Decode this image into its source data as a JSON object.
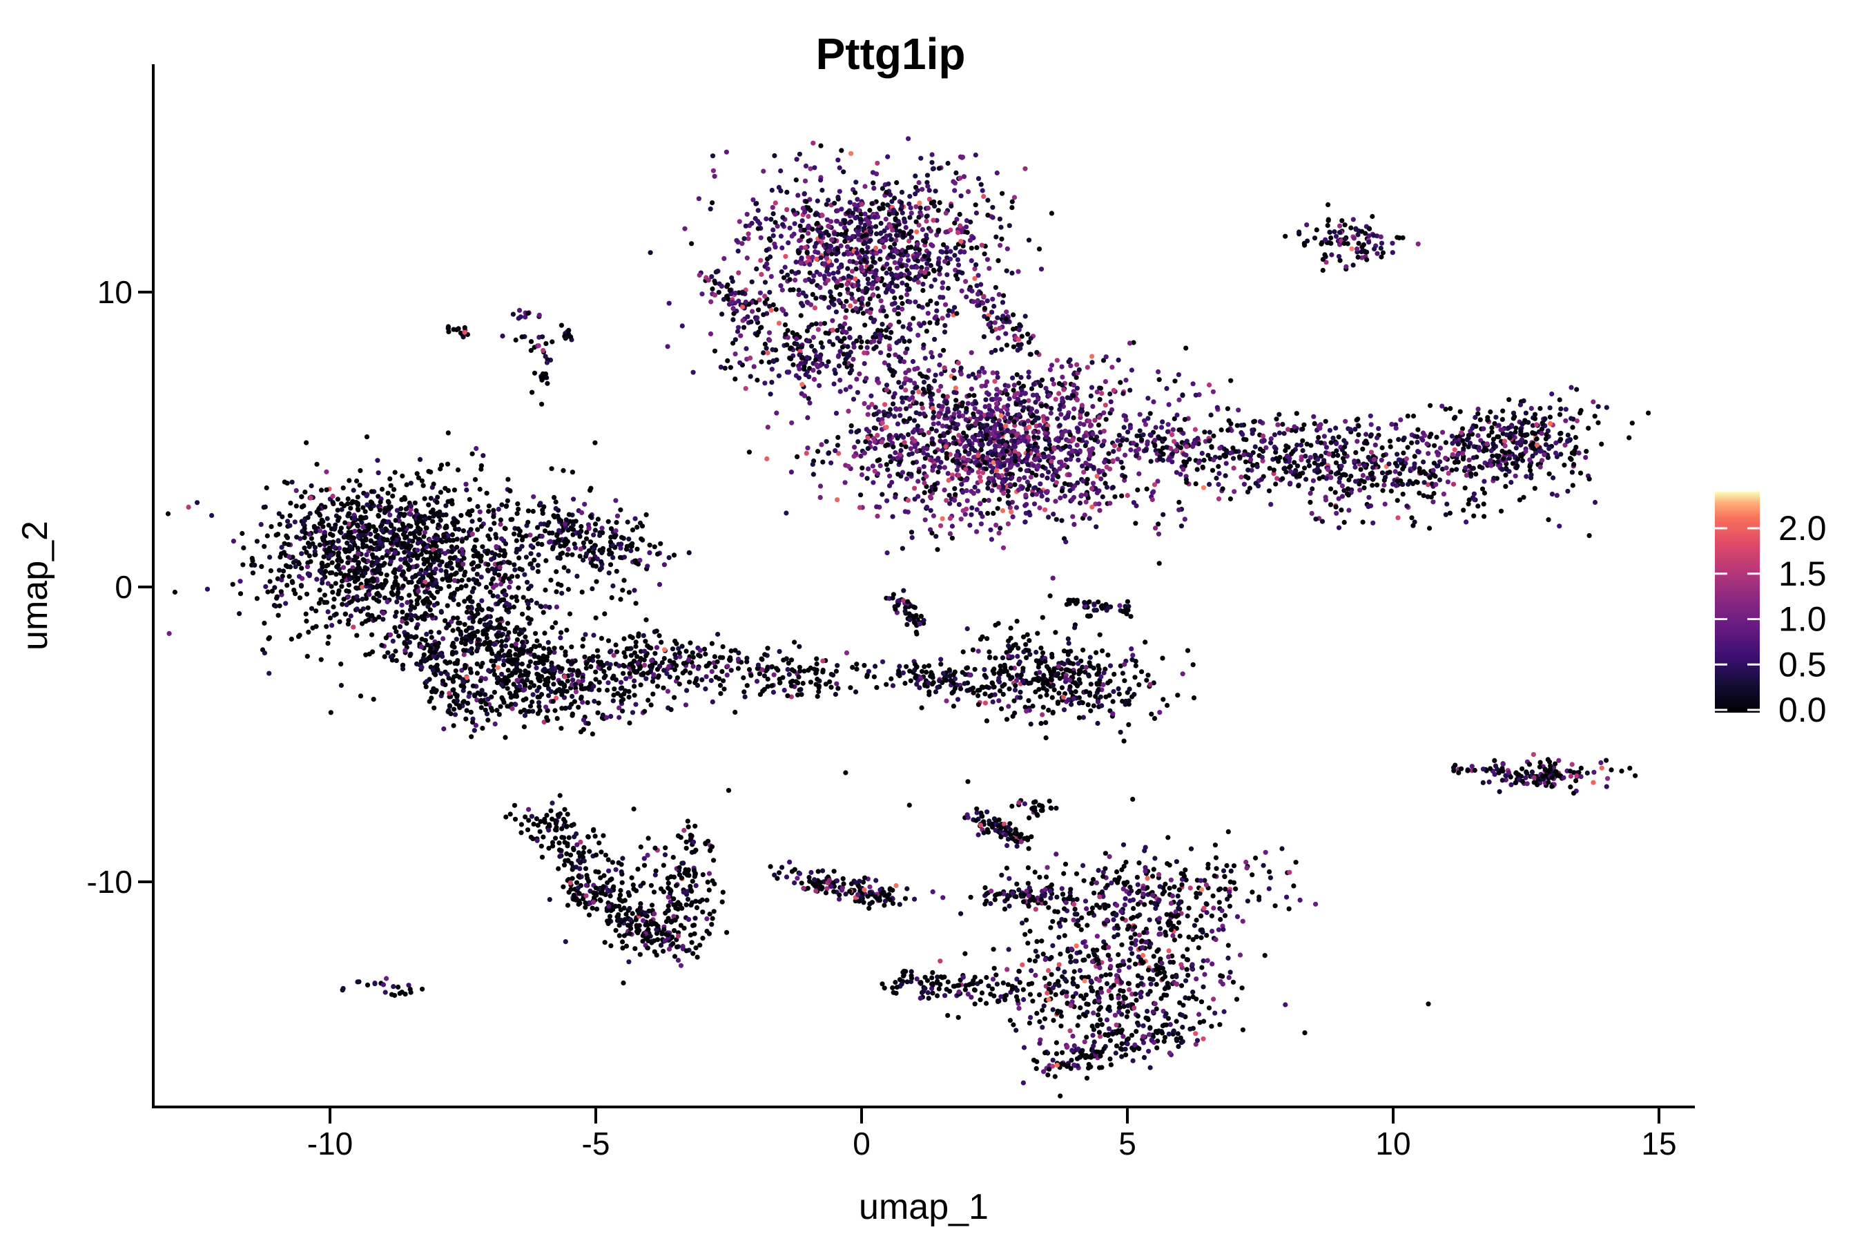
{
  "title": "Pttg1ip",
  "chart_data": {
    "type": "scatter",
    "title": "Pttg1ip",
    "xlabel": "umap_1",
    "ylabel": "umap_2",
    "xlim": [
      -13.3,
      15.7
    ],
    "ylim": [
      -17.7,
      17.7
    ],
    "x_ticks": [
      -10,
      -5,
      0,
      5,
      10,
      15
    ],
    "x_tick_labels": [
      "-10",
      "-5",
      "0",
      "5",
      "10",
      "15"
    ],
    "y_ticks": [
      -10,
      0,
      10
    ],
    "y_tick_labels": [
      "-10",
      "0",
      "10"
    ],
    "grid": false,
    "point_radius_px": 3.6,
    "background": "#ffffff",
    "axis_color": "#000000",
    "legend": {
      "position": "right",
      "orientation": "vertical",
      "ticks": [
        0.0,
        0.5,
        1.0,
        1.5,
        2.0
      ],
      "tick_labels": [
        "0.0",
        "0.5",
        "1.0",
        "1.5",
        "2.0"
      ],
      "vmax": 2.4,
      "tick_color": "#ffffff"
    },
    "colormap": "magma",
    "colormap_stops": [
      [
        0.0,
        "#000004"
      ],
      [
        0.13,
        "#140e36"
      ],
      [
        0.25,
        "#3b0f70"
      ],
      [
        0.38,
        "#641a80"
      ],
      [
        0.52,
        "#8c2981"
      ],
      [
        0.64,
        "#b73779"
      ],
      [
        0.76,
        "#de4968"
      ],
      [
        0.88,
        "#f7705c"
      ],
      [
        0.95,
        "#feb078"
      ],
      [
        1.0,
        "#fcfdbf"
      ]
    ],
    "expression_bins": [
      [
        0.0,
        0.05
      ],
      [
        0.15,
        0.55
      ],
      [
        0.55,
        1.05
      ],
      [
        1.05,
        1.6
      ],
      [
        1.6,
        2.2
      ]
    ],
    "clusters": [
      {
        "name": "top-center-main",
        "kind": "blob",
        "cx": 0.25,
        "cy": 11.5,
        "sx": 1.25,
        "sy": 1.35,
        "rot": -20,
        "n": 1000,
        "profile": [
          0.2,
          0.3,
          0.37,
          0.1,
          0.03
        ]
      },
      {
        "name": "top-center-lower",
        "kind": "blob",
        "cx": -0.7,
        "cy": 8.1,
        "sx": 1.05,
        "sy": 0.6,
        "rot": 15,
        "n": 240,
        "profile": [
          0.28,
          0.3,
          0.32,
          0.08,
          0.02
        ]
      },
      {
        "name": "top-center-west-hook",
        "kind": "streak",
        "x1": -2.75,
        "y1": 10.6,
        "x2": -2.15,
        "y2": 9.2,
        "jitter": 0.22,
        "n": 70,
        "profile": [
          0.3,
          0.3,
          0.3,
          0.08,
          0.02
        ]
      },
      {
        "name": "top-center-se-streak",
        "kind": "streak",
        "x1": 2.15,
        "y1": 10.0,
        "x2": 2.95,
        "y2": 8.3,
        "jitter": 0.16,
        "n": 60,
        "profile": [
          0.25,
          0.3,
          0.33,
          0.09,
          0.03
        ]
      },
      {
        "name": "top-right-small",
        "kind": "blob",
        "cx": 9.15,
        "cy": 11.75,
        "sx": 0.48,
        "sy": 0.4,
        "rot": -25,
        "n": 100,
        "profile": [
          0.42,
          0.28,
          0.22,
          0.06,
          0.02
        ]
      },
      {
        "name": "right-center-main",
        "kind": "blob",
        "cx": 2.55,
        "cy": 4.9,
        "sx": 1.55,
        "sy": 1.35,
        "rot": -18,
        "n": 1500,
        "profile": [
          0.16,
          0.26,
          0.4,
          0.14,
          0.04
        ]
      },
      {
        "name": "right-center-neck",
        "kind": "streak",
        "x1": 5.2,
        "y1": 5.2,
        "x2": 6.6,
        "y2": 4.3,
        "jitter": 0.4,
        "n": 90,
        "profile": [
          0.35,
          0.3,
          0.27,
          0.06,
          0.02
        ]
      },
      {
        "name": "right-band",
        "kind": "blob",
        "cx": 9.4,
        "cy": 4.2,
        "sx": 1.85,
        "sy": 0.85,
        "rot": -6,
        "n": 600,
        "profile": [
          0.45,
          0.27,
          0.22,
          0.05,
          0.01
        ]
      },
      {
        "name": "right-band-east",
        "kind": "blob",
        "cx": 12.35,
        "cy": 4.9,
        "sx": 0.8,
        "sy": 0.6,
        "rot": 25,
        "n": 280,
        "profile": [
          0.4,
          0.26,
          0.25,
          0.07,
          0.02
        ]
      },
      {
        "name": "left-main",
        "kind": "blob",
        "cx": -8.2,
        "cy": 0.7,
        "sx": 1.55,
        "sy": 1.5,
        "rot": 0,
        "n": 1050,
        "profile": [
          0.68,
          0.21,
          0.09,
          0.015,
          0.005
        ]
      },
      {
        "name": "left-upper-west",
        "kind": "blob",
        "cx": -9.4,
        "cy": 1.5,
        "sx": 0.95,
        "sy": 1.05,
        "rot": 0,
        "n": 420,
        "profile": [
          0.68,
          0.21,
          0.09,
          0.015,
          0.005
        ]
      },
      {
        "name": "left-east-finger",
        "kind": "streak",
        "x1": -6.1,
        "y1": 2.1,
        "x2": -4.3,
        "y2": 1.2,
        "jitter": 0.45,
        "n": 170,
        "profile": [
          0.68,
          0.21,
          0.09,
          0.015,
          0.005
        ]
      },
      {
        "name": "left-tail",
        "kind": "streak",
        "x1": -7.4,
        "y1": -1.0,
        "x2": -5.5,
        "y2": -3.6,
        "jitter": 0.5,
        "n": 280,
        "profile": [
          0.66,
          0.22,
          0.1,
          0.015,
          0.005
        ]
      },
      {
        "name": "left-bottom-edge",
        "kind": "streak",
        "x1": -8.7,
        "y1": -1.6,
        "x2": -7.0,
        "y2": -4.4,
        "jitter": 0.35,
        "n": 170,
        "profile": [
          0.66,
          0.22,
          0.1,
          0.015,
          0.005
        ]
      },
      {
        "name": "left-lower-blob",
        "kind": "blob",
        "cx": -5.5,
        "cy": -3.4,
        "sx": 0.95,
        "sy": 0.75,
        "rot": 0,
        "n": 230,
        "profile": [
          0.66,
          0.22,
          0.1,
          0.015,
          0.005
        ]
      },
      {
        "name": "left-stream-east",
        "kind": "streak",
        "x1": -4.7,
        "y1": -2.3,
        "x2": -0.4,
        "y2": -3.1,
        "jitter": 0.45,
        "n": 280,
        "profile": [
          0.7,
          0.19,
          0.09,
          0.015,
          0.005
        ]
      },
      {
        "name": "mid-vertical-streak",
        "kind": "streak",
        "x1": 0.6,
        "y1": -0.25,
        "x2": 1.05,
        "y2": -1.3,
        "jitter": 0.12,
        "n": 50,
        "profile": [
          0.55,
          0.25,
          0.15,
          0.04,
          0.01
        ]
      },
      {
        "name": "mid-horizontal-streak",
        "kind": "streak",
        "x1": 3.85,
        "y1": -0.5,
        "x2": 5.05,
        "y2": -0.8,
        "jitter": 0.1,
        "n": 45,
        "profile": [
          0.7,
          0.18,
          0.1,
          0.02,
          0.0
        ]
      },
      {
        "name": "center-bottom",
        "kind": "blob",
        "cx": 3.6,
        "cy": -3.1,
        "sx": 1.0,
        "sy": 0.68,
        "rot": -12,
        "n": 380,
        "profile": [
          0.6,
          0.23,
          0.13,
          0.03,
          0.01
        ]
      },
      {
        "name": "center-bottom-arm",
        "kind": "streak",
        "x1": 0.5,
        "y1": -2.9,
        "x2": 2.4,
        "y2": -3.4,
        "jitter": 0.28,
        "n": 90,
        "profile": [
          0.6,
          0.23,
          0.13,
          0.03,
          0.01
        ]
      },
      {
        "name": "crescent-upper",
        "kind": "streak",
        "x1": -6.0,
        "y1": -7.5,
        "x2": -5.1,
        "y2": -10.4,
        "jitter": 0.3,
        "n": 140,
        "profile": [
          0.7,
          0.16,
          0.1,
          0.03,
          0.01
        ]
      },
      {
        "name": "crescent-lower",
        "kind": "streak",
        "x1": -5.1,
        "y1": -10.4,
        "x2": -3.4,
        "y2": -12.3,
        "jitter": 0.33,
        "n": 170,
        "profile": [
          0.7,
          0.16,
          0.1,
          0.03,
          0.01
        ]
      },
      {
        "name": "crescent-east-wing",
        "kind": "streak",
        "x1": -3.1,
        "y1": -8.5,
        "x2": -3.6,
        "y2": -12.1,
        "jitter": 0.3,
        "n": 130,
        "profile": [
          0.7,
          0.16,
          0.1,
          0.03,
          0.01
        ]
      },
      {
        "name": "crescent-inner",
        "kind": "blob",
        "cx": -4.4,
        "cy": -10.3,
        "sx": 0.75,
        "sy": 0.95,
        "rot": 0,
        "n": 80,
        "profile": [
          0.72,
          0.15,
          0.09,
          0.03,
          0.01
        ]
      },
      {
        "name": "bottom-strip",
        "kind": "streak",
        "x1": -1.45,
        "y1": -9.8,
        "x2": 0.6,
        "y2": -10.5,
        "jitter": 0.2,
        "n": 140,
        "profile": [
          0.62,
          0.2,
          0.13,
          0.04,
          0.01
        ]
      },
      {
        "name": "bottomright-top-streak",
        "kind": "streak",
        "x1": 2.1,
        "y1": -7.7,
        "x2": 3.1,
        "y2": -8.6,
        "jitter": 0.15,
        "n": 80,
        "profile": [
          0.6,
          0.18,
          0.15,
          0.05,
          0.02
        ]
      },
      {
        "name": "bottomright-clump",
        "kind": "blob",
        "cx": 3.25,
        "cy": -7.5,
        "sx": 0.2,
        "sy": 0.15,
        "rot": 0,
        "n": 25,
        "profile": [
          0.7,
          0.15,
          0.1,
          0.05,
          0.0
        ]
      },
      {
        "name": "bottomright-band",
        "kind": "blob",
        "cx": 3.1,
        "cy": -10.5,
        "sx": 0.4,
        "sy": 0.22,
        "rot": 0,
        "n": 70,
        "profile": [
          0.65,
          0.18,
          0.12,
          0.04,
          0.01
        ]
      },
      {
        "name": "bottomright-upper",
        "kind": "blob",
        "cx": 5.5,
        "cy": -10.6,
        "sx": 1.25,
        "sy": 0.75,
        "rot": 8,
        "n": 330,
        "profile": [
          0.52,
          0.2,
          0.18,
          0.07,
          0.03
        ]
      },
      {
        "name": "bottomright-lower",
        "kind": "blob",
        "cx": 4.8,
        "cy": -13.5,
        "sx": 1.15,
        "sy": 1.05,
        "rot": 0,
        "n": 460,
        "profile": [
          0.55,
          0.2,
          0.16,
          0.06,
          0.03
        ]
      },
      {
        "name": "bottomright-arm",
        "kind": "streak",
        "x1": 0.55,
        "y1": -13.3,
        "x2": 3.0,
        "y2": -13.8,
        "jitter": 0.25,
        "n": 110,
        "profile": [
          0.6,
          0.22,
          0.13,
          0.04,
          0.01
        ]
      },
      {
        "name": "bottomright-bottom-edge",
        "kind": "streak",
        "x1": 3.4,
        "y1": -16.3,
        "x2": 6.0,
        "y2": -15.1,
        "jitter": 0.3,
        "n": 140,
        "profile": [
          0.58,
          0.2,
          0.15,
          0.05,
          0.02
        ]
      },
      {
        "name": "tiny-bottom-left",
        "kind": "blob",
        "cx": -9.0,
        "cy": -13.6,
        "sx": 0.3,
        "sy": 0.15,
        "rot": 0,
        "n": 22,
        "profile": [
          0.5,
          0.2,
          0.18,
          0.09,
          0.03
        ]
      },
      {
        "name": "right-mid-island",
        "kind": "blob",
        "cx": 12.85,
        "cy": -6.35,
        "sx": 0.7,
        "sy": 0.27,
        "rot": 0,
        "n": 130,
        "profile": [
          0.48,
          0.17,
          0.2,
          0.11,
          0.04
        ]
      },
      {
        "name": "right-mid-trail",
        "kind": "streak",
        "x1": 10.9,
        "y1": -6.1,
        "x2": 11.9,
        "y2": -6.25,
        "jitter": 0.07,
        "n": 12,
        "profile": [
          0.4,
          0.2,
          0.25,
          0.1,
          0.05
        ]
      },
      {
        "name": "northwest-streak",
        "kind": "streak",
        "x1": -7.85,
        "y1": 8.85,
        "x2": -7.3,
        "y2": 8.5,
        "jitter": 0.07,
        "n": 14,
        "profile": [
          0.35,
          0.2,
          0.25,
          0.15,
          0.05
        ]
      },
      {
        "name": "northwest-dots",
        "kind": "streak",
        "x1": -6.9,
        "y1": 8.5,
        "x2": -5.75,
        "y2": 8.42,
        "jitter": 0.05,
        "n": 6,
        "profile": [
          0.5,
          0.2,
          0.3,
          0.0,
          0.0
        ]
      },
      {
        "name": "northwest-clump-a",
        "kind": "blob",
        "cx": -6.35,
        "cy": 9.2,
        "sx": 0.14,
        "sy": 0.1,
        "rot": 0,
        "n": 10,
        "profile": [
          0.4,
          0.2,
          0.25,
          0.15,
          0.0
        ]
      },
      {
        "name": "northwest-clump-b",
        "kind": "blob",
        "cx": -6.0,
        "cy": 8.15,
        "sx": 0.14,
        "sy": 0.1,
        "rot": 0,
        "n": 9,
        "profile": [
          0.4,
          0.2,
          0.2,
          0.15,
          0.05
        ]
      },
      {
        "name": "northwest-clump-c",
        "kind": "blob",
        "cx": -5.6,
        "cy": 8.55,
        "sx": 0.12,
        "sy": 0.14,
        "rot": 0,
        "n": 10,
        "profile": [
          0.7,
          0.2,
          0.1,
          0.0,
          0.0
        ]
      },
      {
        "name": "northwest-dots-low",
        "kind": "blob",
        "cx": -5.9,
        "cy": 7.15,
        "sx": 0.15,
        "sy": 0.15,
        "rot": 0,
        "n": 10,
        "profile": [
          0.65,
          0.2,
          0.15,
          0.0,
          0.0
        ]
      },
      {
        "name": "northwest-pair",
        "kind": "blob",
        "cx": -5.95,
        "cy": 7.7,
        "sx": 0.1,
        "sy": 0.06,
        "rot": 0,
        "n": 4,
        "profile": [
          0.3,
          0.3,
          0.4,
          0.0,
          0.0
        ]
      }
    ],
    "singles": {
      "points": [
        [
          -6.2,
          6.6
        ],
        [
          0.9,
          -7.4
        ],
        [
          2.0,
          -6.6
        ],
        [
          5.1,
          -7.2
        ],
        [
          6.9,
          -8.3
        ],
        [
          -1.6,
          5.9
        ],
        [
          6.1,
          8.1
        ],
        [
          5.6,
          0.8
        ],
        [
          3.6,
          0.3
        ],
        [
          -0.3,
          -6.3
        ],
        [
          -2.5,
          -6.9
        ],
        [
          7.6,
          -9.0
        ]
      ],
      "profile": [
        0.75,
        0.15,
        0.1,
        0.0,
        0.0
      ]
    }
  }
}
